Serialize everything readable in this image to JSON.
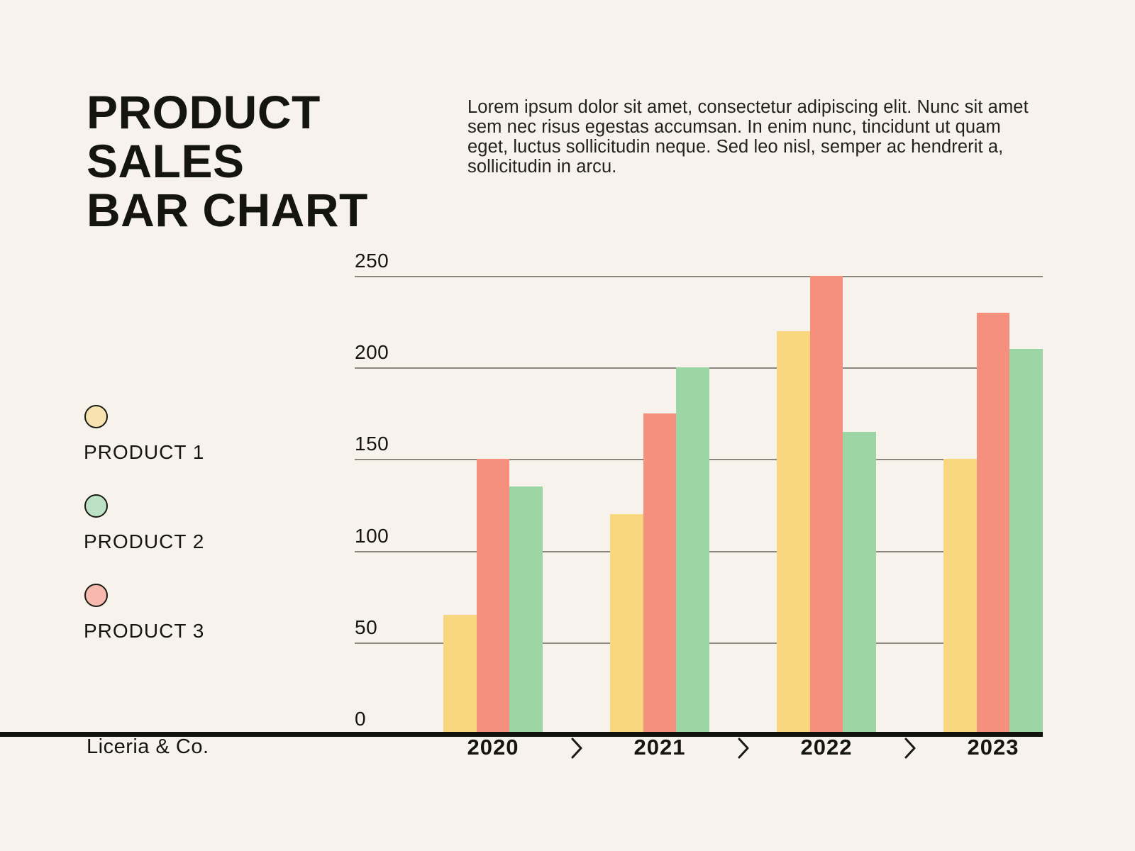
{
  "page": {
    "background_color": "#F7F3EC",
    "text_color": "#1A1A15"
  },
  "title": {
    "lines": [
      "PRODUCT",
      "SALES",
      "BAR CHART"
    ]
  },
  "intro_paragraph": "Lorem ipsum dolor sit amet, consectetur adipiscing elit. Nunc sit amet sem nec risus egestas accumsan. In enim nunc, tincidunt ut quam eget, luctus sollicitudin neque. Sed leo nisl, semper ac hendrerit a, sollicitudin in arcu.",
  "legend": {
    "items": [
      {
        "label": "PRODUCT 1",
        "swatch_color": "#F7E3AF"
      },
      {
        "label": "PRODUCT 2",
        "swatch_color": "#BBE2C5"
      },
      {
        "label": "PRODUCT 3",
        "swatch_color": "#F7B8B0"
      }
    ]
  },
  "chart_data": {
    "type": "bar",
    "title": "PRODUCT SALES BAR CHART",
    "categories": [
      "2020",
      "2021",
      "2022",
      "2023"
    ],
    "series": [
      {
        "name": "PRODUCT 1",
        "color": "#F8D77E",
        "values": [
          65,
          120,
          220,
          150
        ]
      },
      {
        "name": "PRODUCT 3",
        "color": "#F5907F",
        "values": [
          150,
          175,
          250,
          230
        ]
      },
      {
        "name": "PRODUCT 2",
        "color": "#9CD6A4",
        "values": [
          135,
          200,
          165,
          210
        ]
      }
    ],
    "series_display_order": [
      "PRODUCT 1",
      "PRODUCT 3",
      "PRODUCT 2"
    ],
    "ylim": [
      0,
      250
    ],
    "yticks": [
      0,
      50,
      100,
      150,
      200,
      250
    ],
    "grid": "horizontal-only",
    "gridline_color": "#8B867E",
    "axis_line_color": "#12120E",
    "legend_position": "left"
  },
  "footer": {
    "brand": "Liceria & Co.",
    "separator_icon": "chevron-right"
  }
}
